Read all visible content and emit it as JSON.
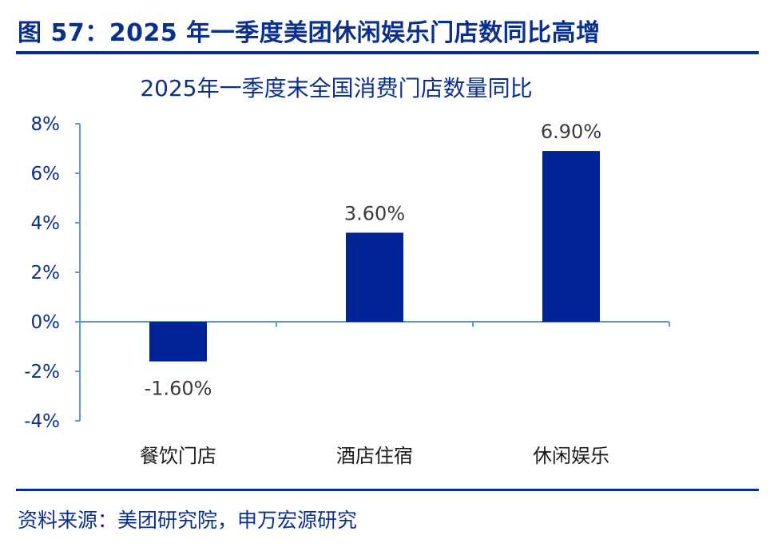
{
  "figure": {
    "title": "图 57：2025 年一季度美团休闲娱乐门店数同比高增",
    "source": "资料来源：美团研究院，申万宏源研究"
  },
  "colors": {
    "brand": "#0a2f8c",
    "bar": "#002395",
    "axis": "#5b9bd5"
  },
  "chart_data": {
    "type": "bar",
    "title": "2025年一季度末全国消费门店数量同比",
    "categories": [
      "餐饮门店",
      "酒店住宿",
      "休闲娱乐"
    ],
    "values": [
      -1.6,
      3.6,
      6.9
    ],
    "value_labels": [
      "-1.60%",
      "3.60%",
      "6.90%"
    ],
    "unit": "%",
    "ylim": [
      -4,
      8
    ],
    "yticks": [
      8,
      6,
      4,
      2,
      0,
      -2,
      -4
    ],
    "ytick_labels": [
      "8%",
      "6%",
      "4%",
      "2%",
      "0%",
      "-2%",
      "-4%"
    ],
    "grid": false,
    "legend": "none"
  }
}
